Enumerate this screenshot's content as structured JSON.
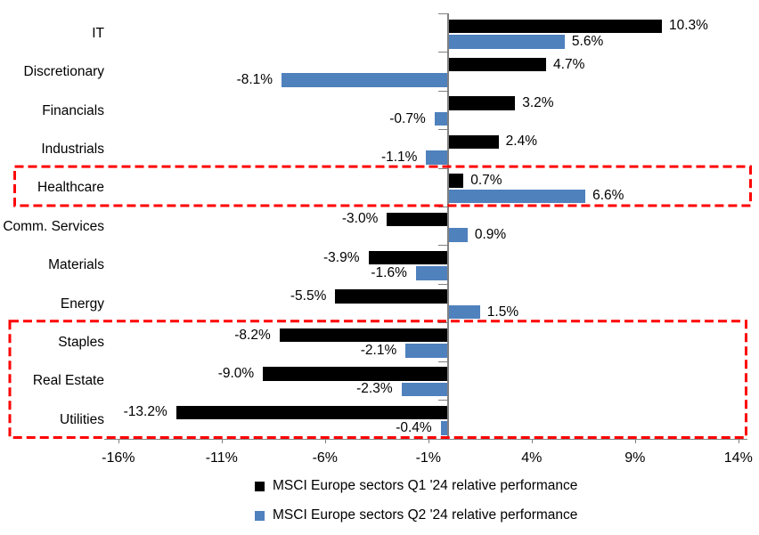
{
  "chart_data": {
    "type": "bar",
    "orientation": "horizontal",
    "categories": [
      "IT",
      "Discretionary",
      "Financials",
      "Industrials",
      "Healthcare",
      "Comm. Services",
      "Materials",
      "Energy",
      "Staples",
      "Real Estate",
      "Utilities"
    ],
    "series": [
      {
        "name": "MSCI Europe sectors Q1 '24 relative performance",
        "color": "#000000",
        "values": [
          10.3,
          4.7,
          3.2,
          2.4,
          0.7,
          -3.0,
          -3.9,
          -5.5,
          -8.2,
          -9.0,
          -13.2
        ],
        "labels": [
          "10.3%",
          "4.7%",
          "3.2%",
          "2.4%",
          "0.7%",
          "-3.0%",
          "-3.9%",
          "-5.5%",
          "-8.2%",
          "-9.0%",
          "-13.2%"
        ]
      },
      {
        "name": "MSCI Europe sectors Q2 '24 relative performance",
        "color": "#4F81BD",
        "values": [
          5.6,
          -8.1,
          -0.7,
          -1.1,
          6.6,
          0.9,
          -1.6,
          1.5,
          -2.1,
          -2.3,
          -0.4
        ],
        "labels": [
          "5.6%",
          "-8.1%",
          "-0.7%",
          "-1.1%",
          "6.6%",
          "0.9%",
          "-1.6%",
          "1.5%",
          "-2.1%",
          "-2.3%",
          "-0.4%"
        ]
      }
    ],
    "x_axis": {
      "unit": "%",
      "ticks": [
        {
          "value": -16,
          "label": "-16%"
        },
        {
          "value": -11,
          "label": "-11%"
        },
        {
          "value": -6,
          "label": "-6%"
        },
        {
          "value": -1,
          "label": "-1%"
        },
        {
          "value": 4,
          "label": "4%"
        },
        {
          "value": 9,
          "label": "9%"
        },
        {
          "value": 14,
          "label": "14%"
        }
      ]
    },
    "grid": false,
    "legend_position": "bottom",
    "highlight_boxes": [
      {
        "name": "healthcare",
        "color": "#FF0000",
        "row_start": 4,
        "row_end": 4
      },
      {
        "name": "staples-realestate-utilities",
        "color": "#FF0000",
        "row_start": 8,
        "row_end": 10
      }
    ],
    "colors": {
      "axis": "#808080",
      "q1_bar": "#000000",
      "q2_bar": "#4F81BD",
      "highlight": "#FF0000"
    }
  }
}
